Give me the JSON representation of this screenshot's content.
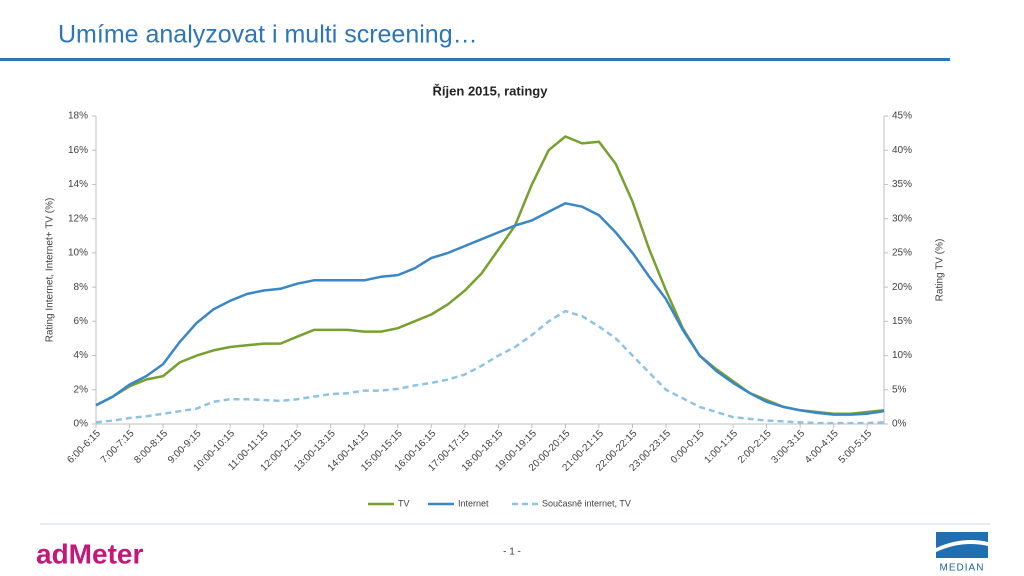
{
  "slide": {
    "title": "Umíme analyzovat i multi screening…"
  },
  "chart_data": {
    "type": "line",
    "title": "Říjen 2015, ratingy",
    "ylabel": "Rating Internet, Internet+ TV (%)",
    "y2label": "Rating TV (%)",
    "categories": [
      "6:00-6:15",
      null,
      "7:00-7:15",
      null,
      "8:00-8:15",
      null,
      "9:00-9:15",
      null,
      "10:00-10:15",
      null,
      "11:00-11:15",
      null,
      "12:00-12:15",
      null,
      "13:00-13:15",
      null,
      "14:00-14:15",
      null,
      "15:00-15:15",
      null,
      "16:00-16:15",
      null,
      "17:00-17:15",
      null,
      "18:00-18:15",
      null,
      "19:00-19:15",
      null,
      "20:00-20:15",
      null,
      "21:00-21:15",
      null,
      "22:00-22:15",
      null,
      "23:00-23:15",
      null,
      "0:00-0:15",
      null,
      "1:00-1:15",
      null,
      "2:00-2:15",
      null,
      "3:00-3:15",
      null,
      "4:00-4:15",
      null,
      "5:00-5:15",
      null
    ],
    "series": [
      {
        "name": "TV",
        "color": "#77a02e",
        "axis": "y2",
        "dashed": false,
        "values": [
          2.75,
          4,
          5.5,
          6.5,
          7,
          9,
          10,
          10.75,
          11.25,
          11.5,
          11.75,
          11.75,
          12.75,
          13.75,
          13.75,
          13.75,
          13.5,
          13.5,
          14,
          15,
          16,
          17.5,
          19.5,
          22,
          25.5,
          29,
          35,
          40,
          42,
          41,
          41.25,
          38,
          32.5,
          25.5,
          19.5,
          14,
          10,
          8,
          6.25,
          4.5,
          3.5,
          2.5,
          2,
          1.75,
          1.5,
          1.5,
          1.75,
          2
        ]
      },
      {
        "name": "Internet",
        "color": "#3a87c8",
        "dashed": false,
        "values": [
          1.1,
          1.6,
          2.3,
          2.8,
          3.5,
          4.8,
          5.9,
          6.7,
          7.2,
          7.6,
          7.8,
          7.9,
          8.2,
          8.4,
          8.4,
          8.4,
          8.4,
          8.6,
          8.7,
          9.1,
          9.7,
          10.0,
          10.4,
          10.8,
          11.2,
          11.6,
          11.9,
          12.4,
          12.9,
          12.7,
          12.2,
          11.2,
          10.0,
          8.6,
          7.3,
          5.5,
          4.0,
          3.1,
          2.4,
          1.8,
          1.3,
          1.0,
          0.8,
          0.65,
          0.55,
          0.55,
          0.6,
          0.75
        ]
      },
      {
        "name": "Současně internet, TV",
        "color": "#8fc3e6",
        "dashed": true,
        "values": [
          0.1,
          0.2,
          0.35,
          0.45,
          0.6,
          0.75,
          0.9,
          1.3,
          1.45,
          1.45,
          1.4,
          1.35,
          1.45,
          1.6,
          1.75,
          1.8,
          1.95,
          1.95,
          2.05,
          2.25,
          2.4,
          2.6,
          2.9,
          3.4,
          4.0,
          4.5,
          5.2,
          6.0,
          6.6,
          6.3,
          5.7,
          5.0,
          4.0,
          3.0,
          2.0,
          1.5,
          1.0,
          0.7,
          0.4,
          0.3,
          0.2,
          0.15,
          0.1,
          0.05,
          0.05,
          0.05,
          0.05,
          0.1
        ]
      }
    ],
    "ylim": [
      0,
      18
    ],
    "yticks": [
      {
        "value": 0,
        "label": "0%"
      },
      {
        "value": 2,
        "label": "2%"
      },
      {
        "value": 4,
        "label": "4%"
      },
      {
        "value": 6,
        "label": "6%"
      },
      {
        "value": 8,
        "label": "8%"
      },
      {
        "value": 10,
        "label": "10%"
      },
      {
        "value": 12,
        "label": "12%"
      },
      {
        "value": 14,
        "label": "14%"
      },
      {
        "value": 16,
        "label": "16%"
      },
      {
        "value": 18,
        "label": "18%"
      }
    ],
    "y2lim": [
      0,
      45
    ],
    "y2ticks": [
      {
        "value": 0,
        "label": "0%"
      },
      {
        "value": 5,
        "label": "5%"
      },
      {
        "value": 10,
        "label": "10%"
      },
      {
        "value": 15,
        "label": "15%"
      },
      {
        "value": 20,
        "label": "20%"
      },
      {
        "value": 25,
        "label": "25%"
      },
      {
        "value": 30,
        "label": "30%"
      },
      {
        "value": 35,
        "label": "35%"
      },
      {
        "value": 40,
        "label": "40%"
      },
      {
        "value": 45,
        "label": "45%"
      }
    ],
    "grid": false,
    "legend": "bottom"
  },
  "footer": {
    "page": "- 1 -",
    "logo_left": "adMeter",
    "logo_right": "MEDIAN"
  }
}
